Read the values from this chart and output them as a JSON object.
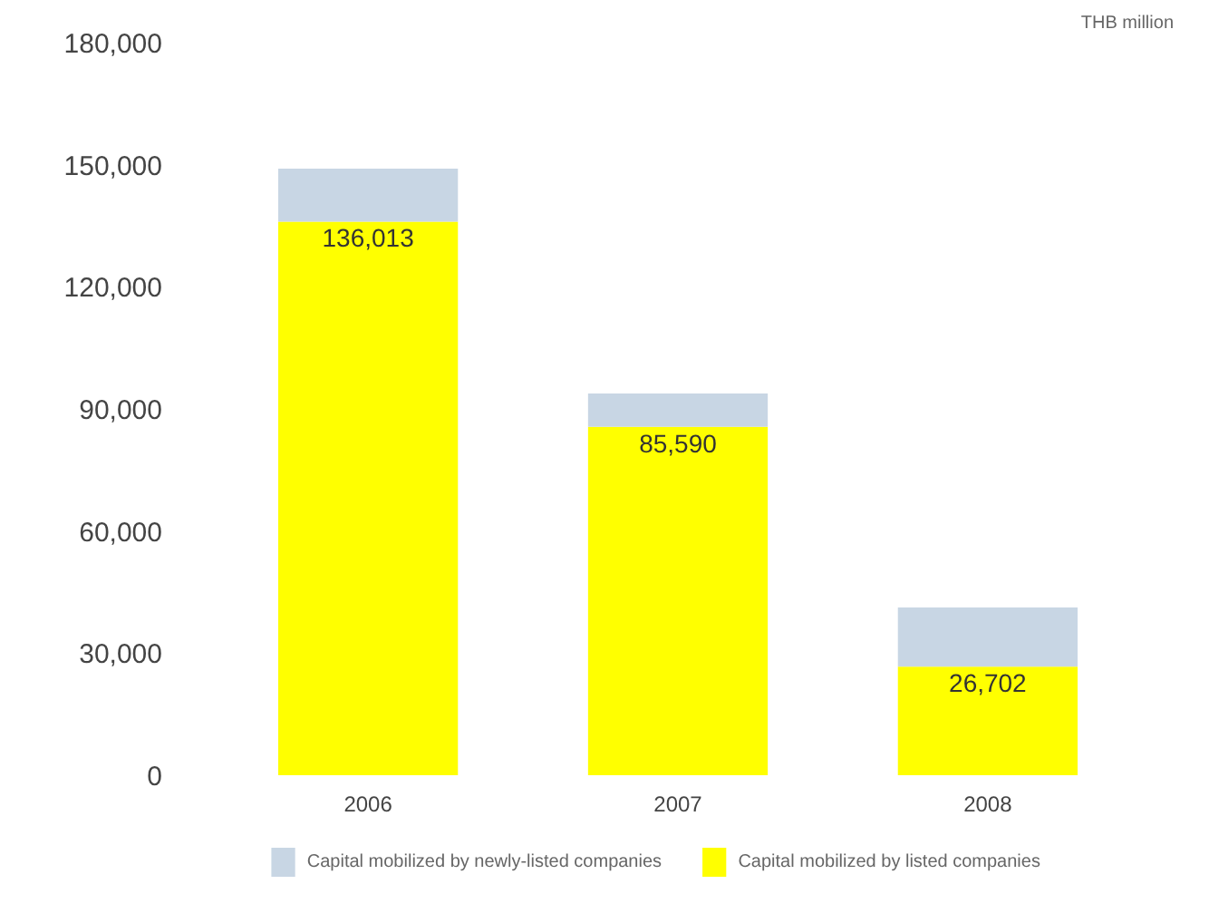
{
  "chart_data": {
    "type": "bar",
    "stacked": true,
    "categories": [
      "2006",
      "2007",
      "2008"
    ],
    "series": [
      {
        "name": "Capital mobilized by listed companies",
        "color": "#ffff00",
        "values": [
          136013,
          85590,
          26702
        ],
        "value_labels": [
          "136,013",
          "85,590",
          "26,702"
        ]
      },
      {
        "name": "Capital mobilized by newly-listed companies",
        "color": "#c8d6e4",
        "values": [
          13000,
          8200,
          14500
        ]
      }
    ],
    "ylim": [
      0,
      180000
    ],
    "yticks": [
      {
        "value": 0,
        "label": "0"
      },
      {
        "value": 30000,
        "label": "30,000"
      },
      {
        "value": 60000,
        "label": "60,000"
      },
      {
        "value": 90000,
        "label": "90,000"
      },
      {
        "value": 120000,
        "label": "120,000"
      },
      {
        "value": 150000,
        "label": "150,000"
      },
      {
        "value": 180000,
        "label": "180,000"
      }
    ],
    "annotations": [
      "THB million"
    ],
    "grid": false,
    "legend": "bottom"
  }
}
